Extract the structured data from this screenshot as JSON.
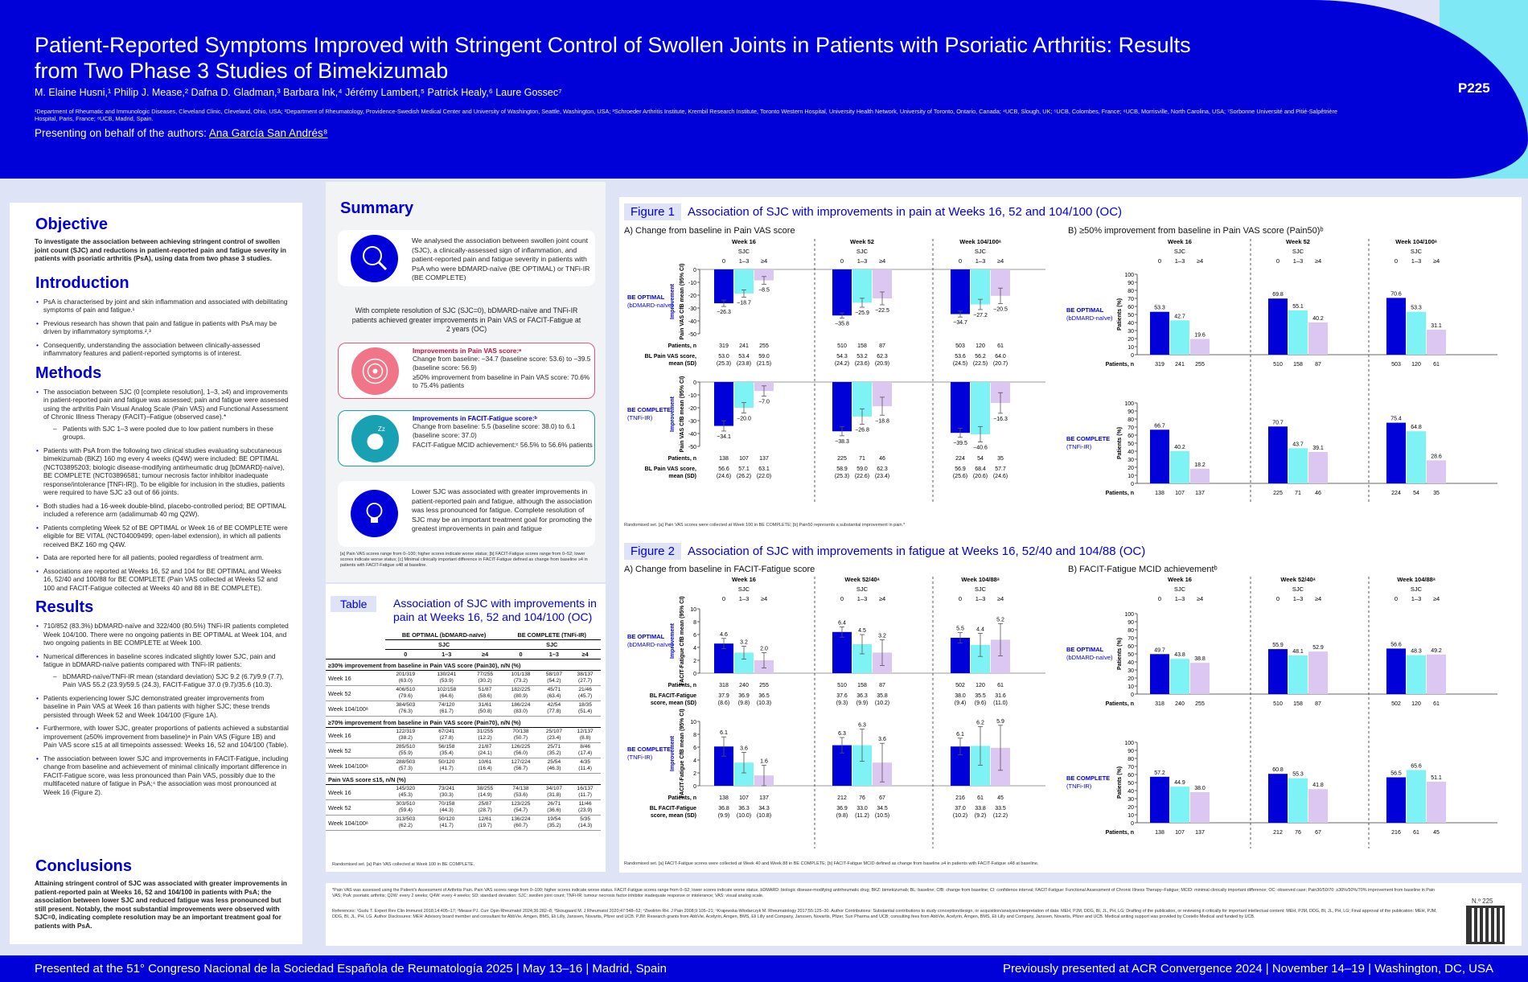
{
  "header": {
    "title": "Patient-Reported Symptoms Improved with Stringent Control of Swollen Joints in Patients with Psoriatic Arthritis: Results from Two Phase 3 Studies of Bimekizumab",
    "authors": "M. Elaine Husni,¹ Philip J. Mease,² Dafna D. Gladman,³ Barbara Ink,⁴ Jérémy Lambert,⁵ Patrick Healy,⁶ Laure Gossec⁷",
    "affiliations": "¹Department of Rheumatic and Immunologic Diseases, Cleveland Clinic, Cleveland, Ohio, USA; ²Department of Rheumatology, Providence-Swedish Medical Center and University of Washington, Seattle, Washington, USA; ³Schroeder Arthritis Institute, Krembil Research Institute, Toronto Western Hospital, University Health Network, University of Toronto, Ontario, Canada; ⁴UCB, Slough, UK; ⁵UCB, Colombes, France; ⁶UCB, Morrisville, North Carolina, USA; ⁷Sorbonne Université and Pitié-Salpêtrière Hospital, Paris, France; ⁸UCB, Madrid, Spain.",
    "presenting_prefix": "Presenting on behalf of the authors:",
    "presenter": "Ana García San Andrés⁸",
    "poster_number": "P225"
  },
  "footer": {
    "left": "Presented at the 51° Congreso Nacional de la Sociedad Española de Reumatología 2025  |  May 13–16  |  Madrid, Spain",
    "right": "Previously presented at ACR Convergence 2024  |  November 14–19  |  Washington, DC, USA"
  },
  "left": {
    "objective_h": "Objective",
    "objective": "To investigate the association between achieving stringent control of swollen joint count (SJC) and reductions in patient-reported pain and fatigue severity in patients with psoriatic arthritis (PsA), using data from two phase 3 studies.",
    "intro_h": "Introduction",
    "intro": [
      "PsA is characterised by joint and skin inflammation and associated with debilitating symptoms of pain and fatigue.¹",
      "Previous research has shown that pain and fatigue in patients with PsA may be driven by inflammatory symptoms.²,³",
      "Consequently, understanding the association between clinically-assessed inflammatory features and patient-reported symptoms is of interest."
    ],
    "methods_h": "Methods",
    "methods_1": "The association between SJC (0 [complete resolution], 1–3, ≥4) and improvements in patient-reported pain and fatigue was assessed; pain and fatigue were assessed using the arthritis Pain Visual Analog Scale (Pain VAS) and Functional Assessment of Chronic Illness Therapy (FACIT)–Fatigue (observed case).*",
    "methods_sub": "Patients with SJC 1–3 were pooled due to low patient numbers in these groups.",
    "methods": [
      "Patients with PsA from the following two clinical studies evaluating subcutaneous bimekizumab (BKZ) 160 mg every 4 weeks (Q4W) were included: BE OPTIMAL (NCT03895203; biologic disease-modifying antirheumatic drug [bDMARD]-naïve), BE COMPLETE (NCT03896581; tumour necrosis factor inhibitor inadequate response/intolerance [TNFi-IR]). To be eligible for inclusion in the studies, patients were required to have SJC ≥3 out of 66 joints.",
      "Both studies had a 16-week double-blind, placebo-controlled period; BE OPTIMAL included a reference arm (adalimumab 40 mg Q2W).",
      "Patients completing Week 52 of BE OPTIMAL or Week 16 of BE COMPLETE were eligible for BE VITAL (NCT04009499; open-label extension), in which all patients received BKZ 160 mg Q4W.",
      "Data are reported here for all patients, pooled regardless of treatment arm.",
      "Associations are reported at Weeks 16, 52 and 104 for BE OPTIMAL and Weeks 16, 52/40 and 100/88 for BE COMPLETE (Pain VAS collected at Weeks 52 and 100 and FACIT-Fatigue collected at Weeks 40 and 88 in BE COMPLETE)."
    ],
    "results_h": "Results",
    "results_1": [
      "710/852 (83.3%) bDMARD-naïve and 322/400 (80.5%) TNFi-IR patients completed Week 104/100. There were no ongoing patients in BE OPTIMAL at Week 104, and two ongoing patients in BE COMPLETE at Week 100.",
      "Numerical differences in baseline scores indicated slightly lower SJC, pain and fatigue in bDMARD-naïve patients compared with TNFi-IR patients:"
    ],
    "results_sub": "bDMARD-naïve/TNFi-IR mean (standard deviation) SJC 9.2 (6.7)/9.9 (7.7), Pain VAS 55.2 (23.9)/59.5 (24.3), FACIT-Fatigue 37.0 (9.7)/35.6 (10.3).",
    "results_2": [
      "Patients experiencing lower SJC demonstrated greater improvements from baseline in Pain VAS at Week 16 than patients with higher SJC; these trends persisted through Week 52 and Week 104/100 (Figure 1A).",
      "Furthermore, with lower SJC, greater proportions of patients achieved a substantial improvement (≥50% improvement from baseline)ᵃ in Pain VAS (Figure 1B) and Pain VAS score ≤15 at all timepoints assessed: Weeks 16, 52 and 104/100 (Table).",
      "The association between lower SJC and improvements in FACIT-Fatigue, including change from baseline and achievement of minimal clinically important difference in FACIT-Fatigue score, was less pronounced than Pain VAS, possibly due to the multifaceted nature of fatigue in PsA;⁴ the association was most pronounced at Week 16 (Figure 2)."
    ],
    "conclusions_h": "Conclusions",
    "conclusions": "Attaining stringent control of SJC was associated with greater improvements in patient-reported pain at Weeks 16, 52 and 104/100 in patients with PsA; the association between lower SJC and reduced fatigue was less pronounced but still present. Notably, the most substantial improvements were observed with SJC=0, indicating complete resolution may be an important treatment goal for patients with PsA."
  },
  "summary": {
    "heading": "Summary",
    "box1": "We analysed the association between swollen joint count (SJC), a clinically-assessed sign of inflammation, and patient-reported pain and fatigue severity in patients with PsA who were bDMARD-naïve (BE OPTIMAL) or TNFi-IR (BE COMPLETE)",
    "mid": "With complete resolution of SJC (SJC=0), bDMARD-naïve and TNFi-IR patients achieved greater improvements in Pain VAS or FACIT-Fatigue at 2 years (OC)",
    "pain_h": "Improvements in Pain VAS score:ᵃ",
    "pain_1": "Change from baseline: −34.7 (baseline score: 53.6) to −39.5 (baseline score: 56.9)",
    "pain_2": "≥50% improvement from baseline in Pain VAS score: 70.6% to 75.4% patients",
    "fat_h": "Improvements in FACIT-Fatigue score:ᵇ",
    "fat_1": "Change from baseline: 5.5 (baseline score: 38.0) to 6.1 (baseline score: 37.0)",
    "fat_2": "FACIT-Fatigue MCID achievement:ᶜ 56.5% to 56.6% patients",
    "box4": "Lower SJC was associated with greater improvements in patient-reported pain and fatigue, although the association was less pronounced for fatigue. Complete resolution of SJC may be an important treatment goal for promoting the greatest improvements in pain and fatigue",
    "foot": "[a] Pain VAS scores range from 0–100; higher scores indicate worse status; [b] FACIT-Fatigue scores range from 0–52; lower scores indicate worse status; [c] Minimal clinically important difference in FACIT-Fatigue defined as change from baseline ≥4 in patients with FACIT-Fatigue ≤48 at baseline."
  },
  "table": {
    "tag": "Table",
    "title": "Association of SJC with improvements in pain at Weeks 16, 52 and 104/100 (OC)",
    "col_groups": [
      "BE OPTIMAL (bDMARD-naïve)",
      "BE COMPLETE (TNFi-IR)"
    ],
    "sjc": "SJC",
    "cols": [
      "0",
      "1–3",
      "≥4",
      "0",
      "1–3",
      "≥4"
    ],
    "sections": [
      {
        "title": "≥30% improvement from baseline in Pain VAS score (Pain30), n/N (%)",
        "rows": [
          {
            "label": "Week 16",
            "cells": [
              "201/319\n(63.0)",
              "130/241\n(53.9)",
              "77/255\n(30.2)",
              "101/138\n(73.2)",
              "58/107\n(54.2)",
              "38/137\n(27.7)"
            ]
          },
          {
            "label": "Week 52",
            "cells": [
              "406/510\n(79.6)",
              "102/158\n(64.6)",
              "51/87\n(58.6)",
              "182/225\n(80.9)",
              "45/71\n(63.4)",
              "21/46\n(45.7)"
            ]
          },
          {
            "label": "Week 104/100ᵃ",
            "cells": [
              "384/503\n(76.3)",
              "74/120\n(61.7)",
              "31/61\n(50.8)",
              "186/224\n(83.0)",
              "42/54\n(77.8)",
              "18/35\n(51.4)"
            ]
          }
        ]
      },
      {
        "title": "≥70% improvement from baseline in Pain VAS score (Pain70), n/N (%)",
        "rows": [
          {
            "label": "Week 16",
            "cells": [
              "122/319\n(38.2)",
              "67/241\n(27.8)",
              "31/255\n(12.2)",
              "70/138\n(50.7)",
              "25/107\n(23.4)",
              "12/137\n(8.8)"
            ]
          },
          {
            "label": "Week 52",
            "cells": [
              "285/510\n(55.9)",
              "56/158\n(35.4)",
              "21/87\n(24.1)",
              "126/225\n(56.0)",
              "25/71\n(35.2)",
              "8/46\n(17.4)"
            ]
          },
          {
            "label": "Week 104/100ᵃ",
            "cells": [
              "288/503\n(57.3)",
              "50/120\n(41.7)",
              "10/61\n(16.4)",
              "127/224\n(56.7)",
              "25/54\n(46.3)",
              "4/35\n(11.4)"
            ]
          }
        ]
      },
      {
        "title": "Pain VAS score ≤15, n/N (%)",
        "rows": [
          {
            "label": "Week 16",
            "cells": [
              "145/320\n(45.3)",
              "73/241\n(30.3)",
              "38/255\n(14.9)",
              "74/138\n(53.6)",
              "34/107\n(31.8)",
              "16/137\n(11.7)"
            ]
          },
          {
            "label": "Week 52",
            "cells": [
              "303/510\n(59.4)",
              "70/158\n(44.3)",
              "25/87\n(28.7)",
              "123/225\n(54.7)",
              "26/71\n(36.6)",
              "11/46\n(23.9)"
            ]
          },
          {
            "label": "Week 104/100ᵃ",
            "cells": [
              "313/503\n(62.2)",
              "50/120\n(41.7)",
              "12/61\n(19.7)",
              "136/224\n(60.7)",
              "19/54\n(35.2)",
              "5/35\n(14.3)"
            ]
          }
        ]
      }
    ],
    "foot": "Randomised set. [a] Pain VAS collected at Week 100 in BE COMPLETE."
  },
  "fig1": {
    "tag": "Figure 1",
    "title": "Association of SJC with improvements in pain at Weeks 16, 52 and 104/100 (OC)",
    "a_title": "A) Change from baseline in Pain VAS score",
    "b_title": "B) ≥50% improvement from baseline in Pain VAS score (Pain50)ᵇ",
    "foot": "Randomised set. [a] Pain VAS scores were collected at Week 100 in BE COMPLETE; [b] Pain50 represents a substantial improvement in pain.*"
  },
  "fig2": {
    "tag": "Figure 2",
    "title": "Association of SJC with improvements in fatigue at Weeks 16, 52/40 and 104/88 (OC)",
    "a_title": "A) Change from baseline in FACIT-Fatigue score",
    "b_title": "B) FACIT-Fatigue MCID achievementᵇ",
    "foot": "Randomised set. [a] FACIT-Fatigue scores were collected at Week 40 and Week 88 in BE COMPLETE; [b] FACIT-Fatigue MCID defined as change from baseline ≥4 in patients with FACIT-Fatigue ≤48 at baseline."
  },
  "refs": {
    "abbrev": "*Pain VAS was assessed using the Patient's Assessment of Arthritis Pain. Pain VAS scores range from 0–100; higher scores indicate worse status. FACIT-Fatigue scores range from 0–52; lower scores indicate worse status. bDMARD: biologic disease-modifying antirheumatic drug; BKZ: bimekizumab; BL: baseline; CfB: change from baseline; CI: confidence interval; FACIT-Fatigue: Functional Assessment of Chronic Illness Therapy–Fatigue; MCID: minimal clinically important difference; OC: observed case; Pain30/50/70: ≥30%/50%/70% improvement from baseline in Pain VAS; PsA: psoriatic arthritis; Q2W: every 2 weeks; Q4W: every 4 weeks; SD: standard deviation; SJC: swollen joint count; TNFi-IR: tumour necrosis factor inhibitor inadequate response or intolerance; VAS: visual analog scale.",
    "refs": "References: ¹Gudu T. Expert Rev Clin Immunol 2018;14:405–17; ²Mease PJ. Curr Opin Rheumatol 2024;36:282–8; ³Skougaard M. J Rheumatol 2020;47:548–52; ⁴Zwolińm RH. J Pain 2008;9:105–21; ⁵Krajewska-Włodarczyk M. Rheumatology 2017;55:125–30. Author Contributions: Substantial contributions to study conception/design, or acquisition/analysis/interpretation of data: MEH, PJM, DDG, BI, JL, PH, LG; Drafting of the publication, or reviewing it critically for important intellectual content: MEH, PJM, DDG, BI, JL, PH, LG; Final approval of the publication: MEH, PJM, DDG, BI, JL, PH, LG. Author Disclosures: MEH: Advisory board member and consultant for AbbVie, Amgen, BMS, Eli Lilly, Janssen, Novartis, Pfizer and UCB. PJM: Research grants from AbbVie, Acelyrin, Amgen, BMS, Eli Lilly and Company, Janssen, Novartis, Pfizer, Sun Pharma and UCB; consulting fees from AbbVie, Acelyrin, Amgen, BMS, Eli Lilly and Company, Janssen, Novartis, Pfizer and UCB. Medical writing support was provided by Costello Medical and funded by UCB.",
    "qr_label": "N.º 225"
  }
}
